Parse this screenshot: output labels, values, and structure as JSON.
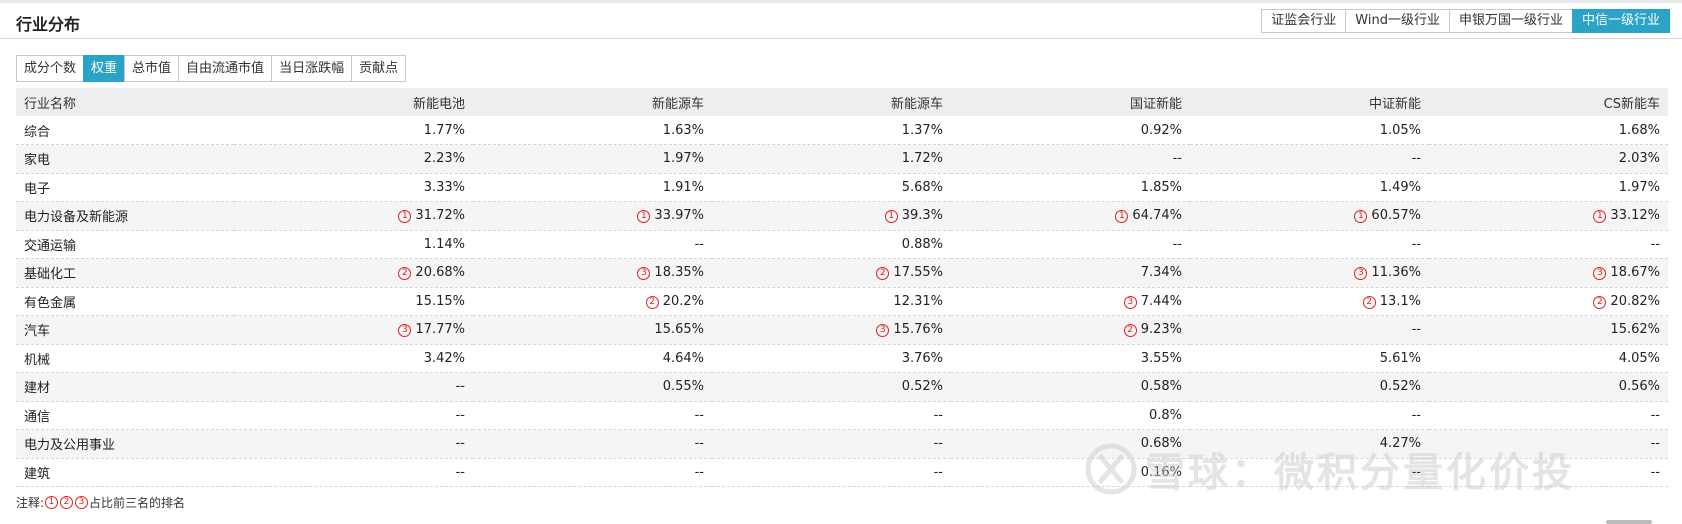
{
  "title": "行业分布",
  "source_tabs": [
    "证监会行业",
    "Wind一级行业",
    "申银万国一级行业",
    "中信一级行业"
  ],
  "active_source": 3,
  "metric_tabs": [
    "成分个数",
    "权重",
    "总市值",
    "自由流通市值",
    "当日涨跌幅",
    "贡献点"
  ],
  "active_metric": 1,
  "table": {
    "headers": [
      "行业名称",
      "新能电池",
      "新能源车",
      "新能源车",
      "国证新能",
      "中证新能",
      "CS新能车"
    ],
    "rows": [
      {
        "name": "综合",
        "cells": [
          {
            "v": "1.77%"
          },
          {
            "v": "1.63%"
          },
          {
            "v": "1.37%"
          },
          {
            "v": "0.92%"
          },
          {
            "v": "1.05%"
          },
          {
            "v": "1.68%"
          }
        ]
      },
      {
        "name": "家电",
        "cells": [
          {
            "v": "2.23%"
          },
          {
            "v": "1.97%"
          },
          {
            "v": "1.72%"
          },
          {
            "v": "--"
          },
          {
            "v": "--"
          },
          {
            "v": "2.03%"
          }
        ]
      },
      {
        "name": "电子",
        "cells": [
          {
            "v": "3.33%"
          },
          {
            "v": "1.91%"
          },
          {
            "v": "5.68%"
          },
          {
            "v": "1.85%"
          },
          {
            "v": "1.49%"
          },
          {
            "v": "1.97%"
          }
        ]
      },
      {
        "name": "电力设备及新能源",
        "cells": [
          {
            "v": "31.72%",
            "r": "1"
          },
          {
            "v": "33.97%",
            "r": "1"
          },
          {
            "v": "39.3%",
            "r": "1"
          },
          {
            "v": "64.74%",
            "r": "1"
          },
          {
            "v": "60.57%",
            "r": "1"
          },
          {
            "v": "33.12%",
            "r": "1"
          }
        ]
      },
      {
        "name": "交通运输",
        "cells": [
          {
            "v": "1.14%"
          },
          {
            "v": "--"
          },
          {
            "v": "0.88%"
          },
          {
            "v": "--"
          },
          {
            "v": "--"
          },
          {
            "v": "--"
          }
        ]
      },
      {
        "name": "基础化工",
        "cells": [
          {
            "v": "20.68%",
            "r": "2"
          },
          {
            "v": "18.35%",
            "r": "3"
          },
          {
            "v": "17.55%",
            "r": "2"
          },
          {
            "v": "7.34%"
          },
          {
            "v": "11.36%",
            "r": "3"
          },
          {
            "v": "18.67%",
            "r": "3"
          }
        ]
      },
      {
        "name": "有色金属",
        "cells": [
          {
            "v": "15.15%"
          },
          {
            "v": "20.2%",
            "r": "2"
          },
          {
            "v": "12.31%"
          },
          {
            "v": "7.44%",
            "r": "3"
          },
          {
            "v": "13.1%",
            "r": "2"
          },
          {
            "v": "20.82%",
            "r": "2"
          }
        ]
      },
      {
        "name": "汽车",
        "cells": [
          {
            "v": "17.77%",
            "r": "3"
          },
          {
            "v": "15.65%"
          },
          {
            "v": "15.76%",
            "r": "3"
          },
          {
            "v": "9.23%",
            "r": "2"
          },
          {
            "v": "--"
          },
          {
            "v": "15.62%"
          }
        ]
      },
      {
        "name": "机械",
        "cells": [
          {
            "v": "3.42%"
          },
          {
            "v": "4.64%"
          },
          {
            "v": "3.76%"
          },
          {
            "v": "3.55%"
          },
          {
            "v": "5.61%"
          },
          {
            "v": "4.05%"
          }
        ]
      },
      {
        "name": "建材",
        "cells": [
          {
            "v": "--"
          },
          {
            "v": "0.55%"
          },
          {
            "v": "0.52%"
          },
          {
            "v": "0.58%"
          },
          {
            "v": "0.52%"
          },
          {
            "v": "0.56%"
          }
        ]
      },
      {
        "name": "通信",
        "cells": [
          {
            "v": "--"
          },
          {
            "v": "--"
          },
          {
            "v": "--"
          },
          {
            "v": "0.8%"
          },
          {
            "v": "--"
          },
          {
            "v": "--"
          }
        ]
      },
      {
        "name": "电力及公用事业",
        "cells": [
          {
            "v": "--"
          },
          {
            "v": "--"
          },
          {
            "v": "--"
          },
          {
            "v": "0.68%"
          },
          {
            "v": "4.27%"
          },
          {
            "v": "--"
          }
        ]
      },
      {
        "name": "建筑",
        "cells": [
          {
            "v": "--"
          },
          {
            "v": "--"
          },
          {
            "v": "--"
          },
          {
            "v": "0.16%"
          },
          {
            "v": "--"
          },
          {
            "v": "--"
          }
        ]
      }
    ]
  },
  "rank_symbols": {
    "1": "1",
    "2": "2",
    "3": "3"
  },
  "note": {
    "prefix": "注释:",
    "suffix": "占比前三名的排名"
  },
  "watermark": "雪球：微积分量化价投",
  "colors": {
    "accent": "#2aa3c7",
    "rank": "#e02020"
  }
}
